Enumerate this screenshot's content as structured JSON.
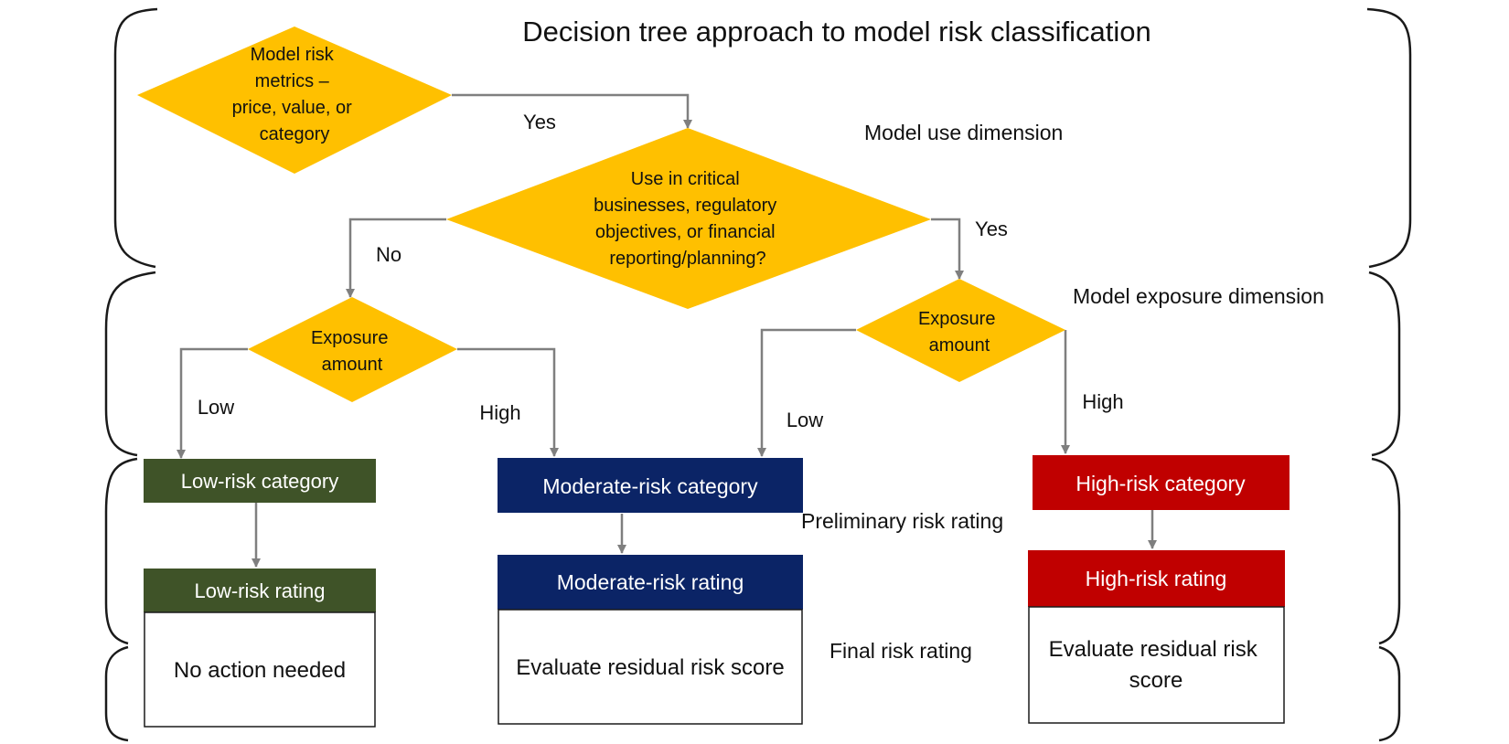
{
  "title": "Decision tree approach to model risk classification",
  "colors": {
    "decision": "#FFC000",
    "low": "#3F5328",
    "moderate": "#0B2466",
    "high": "#C00000",
    "connector": "#7F7F7F"
  },
  "decisions": {
    "metrics": [
      "Model risk",
      "metrics –",
      "price, value, or",
      "category"
    ],
    "critical": [
      "Use in critical",
      "businesses, regulatory",
      "objectives, or financial",
      "reporting/planning?"
    ],
    "exposure_left": [
      "Exposure",
      "amount"
    ],
    "exposure_right": [
      "Exposure",
      "amount"
    ]
  },
  "branch_labels": {
    "yes_metrics": "Yes",
    "yes_critical": "Yes",
    "no_critical": "No",
    "low_left": "Low",
    "high_left": "High",
    "low_right": "Low",
    "high_right": "High"
  },
  "dimensions": {
    "model_use": "Model use dimension",
    "model_exposure": "Model exposure dimension",
    "preliminary": "Preliminary risk rating",
    "final": "Final risk rating"
  },
  "categories": {
    "low": "Low-risk category",
    "moderate": "Moderate-risk category",
    "high": "High-risk category"
  },
  "ratings": {
    "low": "Low-risk rating",
    "moderate": "Moderate-risk rating",
    "high": "High-risk rating"
  },
  "actions": {
    "low": [
      "No action needed"
    ],
    "moderate": [
      "Evaluate residual risk score"
    ],
    "high": [
      "Evaluate residual risk",
      "score"
    ]
  }
}
